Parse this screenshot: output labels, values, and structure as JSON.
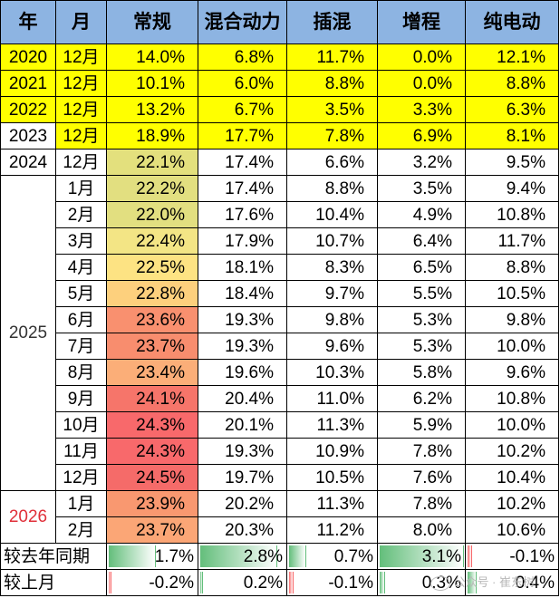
{
  "headers": [
    "年",
    "月",
    "常规",
    "混合动力",
    "插混",
    "增程",
    "纯电动"
  ],
  "highlight_rows": [
    {
      "year": "2020",
      "month": "12月",
      "values": [
        "14.0%",
        "6.8%",
        "11.7%",
        "0.0%",
        "12.1%"
      ]
    },
    {
      "year": "2021",
      "month": "12月",
      "values": [
        "10.1%",
        "6.0%",
        "8.8%",
        "0.0%",
        "8.8%"
      ]
    },
    {
      "year": "2022",
      "month": "12月",
      "values": [
        "13.2%",
        "6.7%",
        "3.5%",
        "3.3%",
        "6.3%"
      ]
    },
    {
      "year": "2023",
      "month": "12月",
      "values": [
        "18.9%",
        "17.7%",
        "7.8%",
        "6.9%",
        "8.1%"
      ]
    }
  ],
  "row_2024": {
    "year": "2024",
    "month": "12月",
    "values": [
      "22.1%",
      "17.4%",
      "6.6%",
      "3.2%",
      "9.5%"
    ]
  },
  "group_2025": {
    "year": "2025",
    "rows": [
      {
        "month": "1月",
        "values": [
          "22.2%",
          "17.4%",
          "8.8%",
          "3.5%",
          "9.4%"
        ]
      },
      {
        "month": "2月",
        "values": [
          "22.0%",
          "17.6%",
          "10.4%",
          "4.9%",
          "10.8%"
        ]
      },
      {
        "month": "3月",
        "values": [
          "22.4%",
          "17.9%",
          "10.7%",
          "6.4%",
          "11.7%"
        ]
      },
      {
        "month": "4月",
        "values": [
          "22.5%",
          "18.1%",
          "8.3%",
          "6.5%",
          "8.8%"
        ]
      },
      {
        "month": "5月",
        "values": [
          "22.8%",
          "18.4%",
          "9.7%",
          "5.5%",
          "10.5%"
        ]
      },
      {
        "month": "6月",
        "values": [
          "23.6%",
          "19.3%",
          "9.8%",
          "5.3%",
          "9.8%"
        ]
      },
      {
        "month": "7月",
        "values": [
          "23.7%",
          "19.3%",
          "9.6%",
          "5.3%",
          "10.0%"
        ]
      },
      {
        "month": "8月",
        "values": [
          "23.4%",
          "19.6%",
          "10.3%",
          "5.8%",
          "9.6%"
        ]
      },
      {
        "month": "9月",
        "values": [
          "24.1%",
          "20.4%",
          "11.0%",
          "6.2%",
          "10.8%"
        ]
      },
      {
        "month": "10月",
        "values": [
          "24.3%",
          "20.1%",
          "11.3%",
          "5.9%",
          "10.0%"
        ]
      },
      {
        "month": "11月",
        "values": [
          "24.3%",
          "19.3%",
          "10.9%",
          "7.8%",
          "10.2%"
        ]
      },
      {
        "month": "12月",
        "values": [
          "24.5%",
          "19.7%",
          "10.5%",
          "7.6%",
          "10.4%"
        ]
      }
    ]
  },
  "group_2026": {
    "year": "2026",
    "rows": [
      {
        "month": "1月",
        "values": [
          "23.9%",
          "20.2%",
          "11.3%",
          "7.8%",
          "10.2%"
        ]
      },
      {
        "month": "2月",
        "values": [
          "23.7%",
          "20.3%",
          "11.2%",
          "8.0%",
          "10.6%"
        ]
      }
    ]
  },
  "conventional_cell_colors": {
    "2024": "#e3e07d",
    "2025": [
      "#e2df80",
      "#e2df80",
      "#f3e585",
      "#fde383",
      "#fdd07d",
      "#f9906f",
      "#f88d6e",
      "#fbae78",
      "#f6756a",
      "#f8696b",
      "#f8696b",
      "#f56b69"
    ],
    "2026": [
      "#f99870",
      "#fba676"
    ]
  },
  "comparison_rows": [
    {
      "label": "较去年同期",
      "values": [
        1.7,
        2.8,
        0.7,
        3.1,
        -0.1
      ],
      "display": [
        "1.7%",
        "2.8%",
        "0.7%",
        "3.1%",
        "-0.1%"
      ]
    },
    {
      "label": "较上月",
      "values": [
        -0.2,
        0.2,
        -0.1,
        0.3,
        0.4
      ],
      "display": [
        "-0.2%",
        "0.2%",
        "-0.1%",
        "0.3%",
        "0.4%"
      ]
    }
  ],
  "bar_colors": {
    "positive": "#63be7b",
    "negative": "#f8696b"
  },
  "watermark": "公众号 · 崔东树"
}
